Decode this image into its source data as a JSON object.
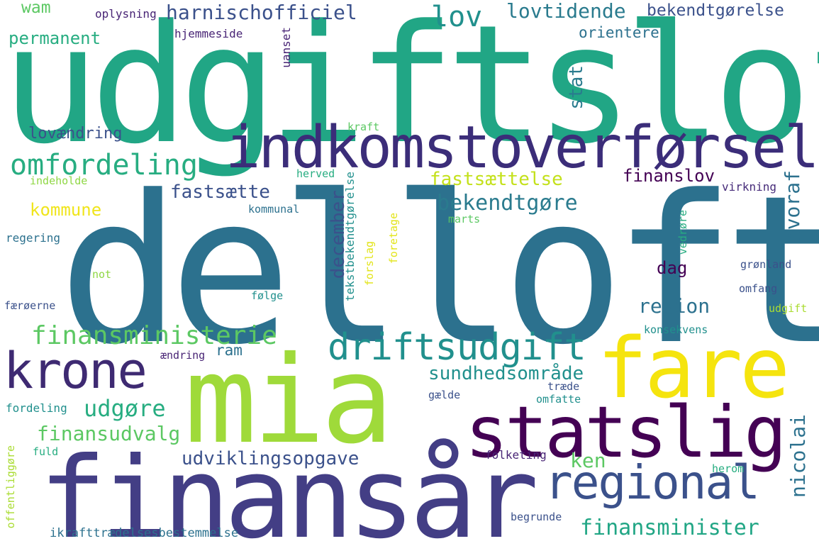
{
  "words": {
    "udgiftsloft": "udgiftsloft",
    "delloft": "delloft",
    "mia": "mia",
    "finansaar": "finansår",
    "indkomstoverforsel": "indkomstoverførsel",
    "fare": "fare",
    "statslig": "statslig",
    "krone": "krone",
    "regional": "regional",
    "driftsudgift": "driftsudgift",
    "omfordeling": "omfordeling",
    "harnischofficiel": "harnischofficiel",
    "lov": "lov",
    "lovtidende": "lovtidende",
    "bekendtgorelse": "bekendtgørelse",
    "wam": "wam",
    "oplysning": "oplysning",
    "permanent": "permanent",
    "hjemmeside": "hjemmeside",
    "uanset": "uanset",
    "orientere": "orientere",
    "stat": "stat",
    "lovaendring": "lovændring",
    "kraft": "kraft",
    "fastsaettelse": "fastsættelse",
    "finanslov": "finanslov",
    "herved": "herved",
    "indeholde": "indeholde",
    "fastsaette": "fastsætte",
    "tekstbekendtgorelse": "tekstbekendtgørelse",
    "virkning": "virkning",
    "kommune": "kommune",
    "bekendtgore": "bekendtgøre",
    "hvoraf": "hvoraf",
    "kommunal": "kommunal",
    "marts": "marts",
    "regering": "regering",
    "forslag": "forslag",
    "foretage": "foretage",
    "vedrore": "vedrøre",
    "december": "december",
    "dag": "dag",
    "not": "not",
    "gronland": "grønland",
    "omfang": "omfang",
    "faeroerne": "færøerne",
    "folge": "følge",
    "region": "region",
    "udgift": "udgift",
    "finansministerie": "finansministerie",
    "konsekvens": "konsekvens",
    "ram": "ram",
    "aendring": "ændring",
    "sundhedsomraade": "sundhedsområde",
    "traede": "træde",
    "udgore": "udgøre",
    "gaelde": "gælde",
    "omfatte": "omfatte",
    "fordeling": "fordeling",
    "finansudvalg": "finansudvalg",
    "nicolai": "nicolai",
    "ken": "ken",
    "fuld": "fuld",
    "udviklingsopgave": "udviklingsopgave",
    "folketing": "folketing",
    "offentliggore": "offentliggøre",
    "herom": "herom",
    "begrunde": "begrunde",
    "finansminister": "finansminister",
    "ikrafttraedelsesbestemmelse": "ikrafttrædelsesbestemmelse"
  },
  "colors": {
    "dark_purple": "#440154",
    "indigo": "#472c7a",
    "slate_blue": "#3b518b",
    "steel_blue": "#2c718e",
    "teal": "#21908d",
    "sea_green": "#27ad81",
    "green": "#5cc863",
    "lime": "#aadc32",
    "yellow": "#fde725"
  }
}
